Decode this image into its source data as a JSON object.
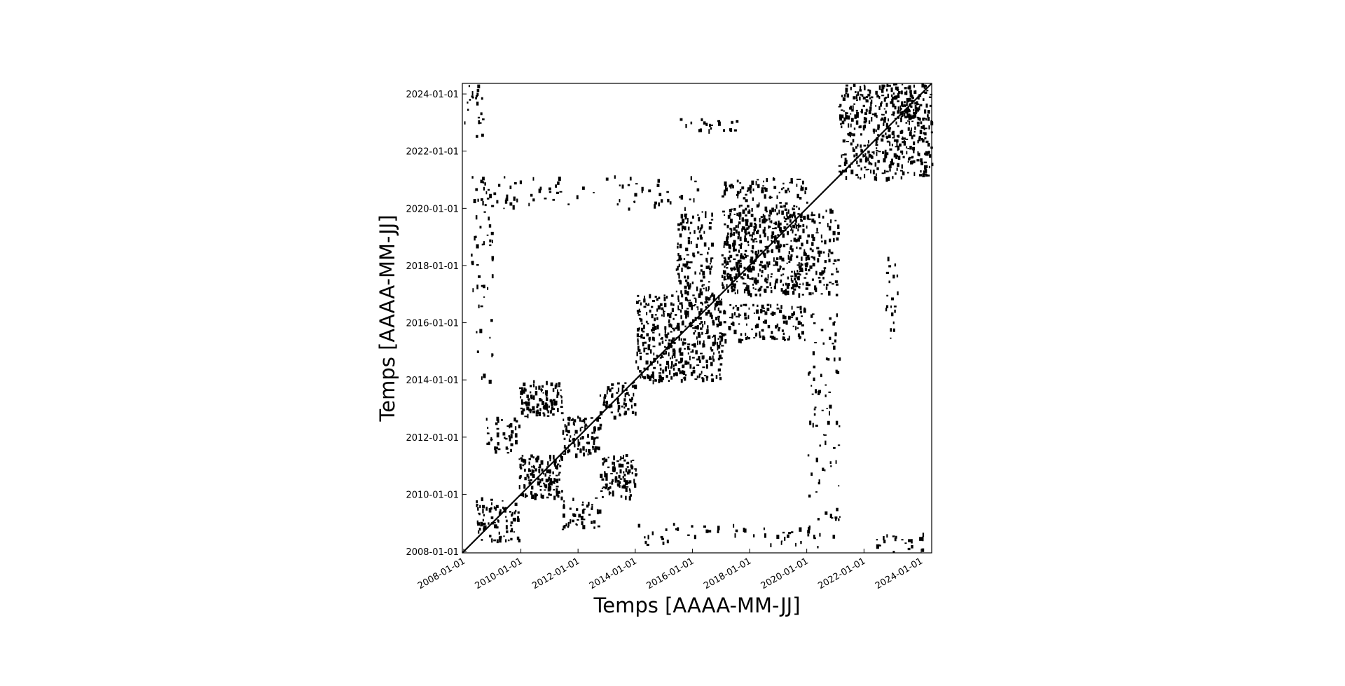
{
  "chart_data": {
    "type": "heatmap",
    "title": "",
    "xlabel": "Temps [AAAA-MM-JJ]",
    "ylabel": "Temps [AAAA-MM-JJ]",
    "x_ticks": [
      "2008-01-01",
      "2010-01-01",
      "2012-01-01",
      "2014-01-01",
      "2016-01-01",
      "2018-01-01",
      "2020-01-01",
      "2022-01-01",
      "2024-01-01"
    ],
    "y_ticks": [
      "2008-01-01",
      "2010-01-01",
      "2012-01-01",
      "2014-01-01",
      "2016-01-01",
      "2018-01-01",
      "2020-01-01",
      "2022-01-01",
      "2024-01-01"
    ],
    "xlim": [
      "2007-12-15",
      "2024-05-15"
    ],
    "ylim": [
      "2007-12-15",
      "2024-05-15"
    ],
    "grid": false,
    "colors": {
      "recurrence": "#000000",
      "background": "#ffffff"
    },
    "recurrence_blocks": [
      {
        "x": [
          "2007-12-15",
          "2024-05-15"
        ],
        "y": [
          "2007-12-15",
          "2024-05-15"
        ],
        "density": 1.0,
        "kind": "diagonal"
      },
      {
        "x": [
          "2008-06-01",
          "2009-12-01"
        ],
        "y": [
          "2008-06-01",
          "2009-12-01"
        ],
        "density": 0.35
      },
      {
        "x": [
          "2009-12-01",
          "2011-06-01"
        ],
        "y": [
          "2009-12-01",
          "2011-06-01"
        ],
        "density": 0.55
      },
      {
        "x": [
          "2011-06-01",
          "2012-10-01"
        ],
        "y": [
          "2011-06-01",
          "2012-10-01"
        ],
        "density": 0.5
      },
      {
        "x": [
          "2012-10-01",
          "2014-01-01"
        ],
        "y": [
          "2012-10-01",
          "2014-01-01"
        ],
        "density": 0.35
      },
      {
        "x": [
          "2009-12-01",
          "2011-06-01"
        ],
        "y": [
          "2012-10-01",
          "2014-01-01"
        ],
        "density": 0.5
      },
      {
        "x": [
          "2012-10-01",
          "2014-01-01"
        ],
        "y": [
          "2009-12-01",
          "2011-06-01"
        ],
        "density": 0.5
      },
      {
        "x": [
          "2008-10-01",
          "2009-12-01"
        ],
        "y": [
          "2011-06-01",
          "2012-10-01"
        ],
        "density": 0.25
      },
      {
        "x": [
          "2011-06-01",
          "2012-10-01"
        ],
        "y": [
          "2008-10-01",
          "2009-12-01"
        ],
        "density": 0.25
      },
      {
        "x": [
          "2014-01-01",
          "2015-06-01"
        ],
        "y": [
          "2014-01-01",
          "2015-06-01"
        ],
        "density": 0.45
      },
      {
        "x": [
          "2015-06-01",
          "2017-01-01"
        ],
        "y": [
          "2015-06-01",
          "2017-01-01"
        ],
        "density": 0.4
      },
      {
        "x": [
          "2014-01-01",
          "2015-06-01"
        ],
        "y": [
          "2015-06-01",
          "2017-01-01"
        ],
        "density": 0.4
      },
      {
        "x": [
          "2015-06-01",
          "2017-01-01"
        ],
        "y": [
          "2014-01-01",
          "2015-06-01"
        ],
        "density": 0.4
      },
      {
        "x": [
          "2015-06-01",
          "2016-09-01"
        ],
        "y": [
          "2016-09-01",
          "2019-12-01"
        ],
        "density": 0.3
      },
      {
        "x": [
          "2016-09-01",
          "2019-12-01"
        ],
        "y": [
          "2015-06-01",
          "2016-09-01"
        ],
        "density": 0.3
      },
      {
        "x": [
          "2017-01-01",
          "2018-06-01"
        ],
        "y": [
          "2017-01-01",
          "2018-06-01"
        ],
        "density": 0.55
      },
      {
        "x": [
          "2018-06-01",
          "2020-01-01"
        ],
        "y": [
          "2018-06-01",
          "2020-01-01"
        ],
        "density": 0.5
      },
      {
        "x": [
          "2017-01-01",
          "2018-06-01"
        ],
        "y": [
          "2018-06-01",
          "2020-01-01"
        ],
        "density": 0.45
      },
      {
        "x": [
          "2018-06-01",
          "2020-01-01"
        ],
        "y": [
          "2017-01-01",
          "2018-06-01"
        ],
        "density": 0.45
      },
      {
        "x": [
          "2020-01-01",
          "2021-02-01"
        ],
        "y": [
          "2017-01-01",
          "2020-01-01"
        ],
        "density": 0.25
      },
      {
        "x": [
          "2017-01-01",
          "2020-01-01"
        ],
        "y": [
          "2020-01-01",
          "2021-02-01"
        ],
        "density": 0.25
      },
      {
        "x": [
          "2021-02-01",
          "2022-06-01"
        ],
        "y": [
          "2021-02-01",
          "2022-06-01"
        ],
        "density": 0.35
      },
      {
        "x": [
          "2022-06-01",
          "2024-05-15"
        ],
        "y": [
          "2022-06-01",
          "2024-05-15"
        ],
        "density": 0.45
      },
      {
        "x": [
          "2021-02-01",
          "2022-06-01"
        ],
        "y": [
          "2022-06-01",
          "2024-05-15"
        ],
        "density": 0.35
      },
      {
        "x": [
          "2022-06-01",
          "2024-05-15"
        ],
        "y": [
          "2021-02-01",
          "2022-06-01"
        ],
        "density": 0.35
      },
      {
        "x": [
          "2008-01-01",
          "2008-09-01"
        ],
        "y": [
          "2022-06-01",
          "2024-05-15"
        ],
        "density": 0.15
      },
      {
        "x": [
          "2022-06-01",
          "2024-05-15"
        ],
        "y": [
          "2008-01-01",
          "2008-09-01"
        ],
        "density": 0.15
      },
      {
        "x": [
          "2008-04-01",
          "2009-01-01"
        ],
        "y": [
          "2014-01-01",
          "2020-06-01"
        ],
        "density": 0.08
      },
      {
        "x": [
          "2014-01-01",
          "2020-06-01"
        ],
        "y": [
          "2008-04-01",
          "2009-01-01"
        ],
        "density": 0.08
      },
      {
        "x": [
          "2020-01-01",
          "2021-03-01"
        ],
        "y": [
          "2008-03-01",
          "2016-06-01"
        ],
        "density": 0.08
      },
      {
        "x": [
          "2008-03-01",
          "2016-06-01"
        ],
        "y": [
          "2020-01-01",
          "2021-03-01"
        ],
        "density": 0.08
      },
      {
        "x": [
          "2023-03-01",
          "2023-11-01"
        ],
        "y": [
          "2023-03-01",
          "2023-11-01"
        ],
        "density": 0.6
      },
      {
        "x": [
          "2022-10-01",
          "2023-03-01"
        ],
        "y": [
          "2015-06-01",
          "2018-06-01"
        ],
        "density": 0.15
      },
      {
        "x": [
          "2015-06-01",
          "2018-06-01"
        ],
        "y": [
          "2022-10-01",
          "2023-03-01"
        ],
        "density": 0.15
      }
    ]
  }
}
